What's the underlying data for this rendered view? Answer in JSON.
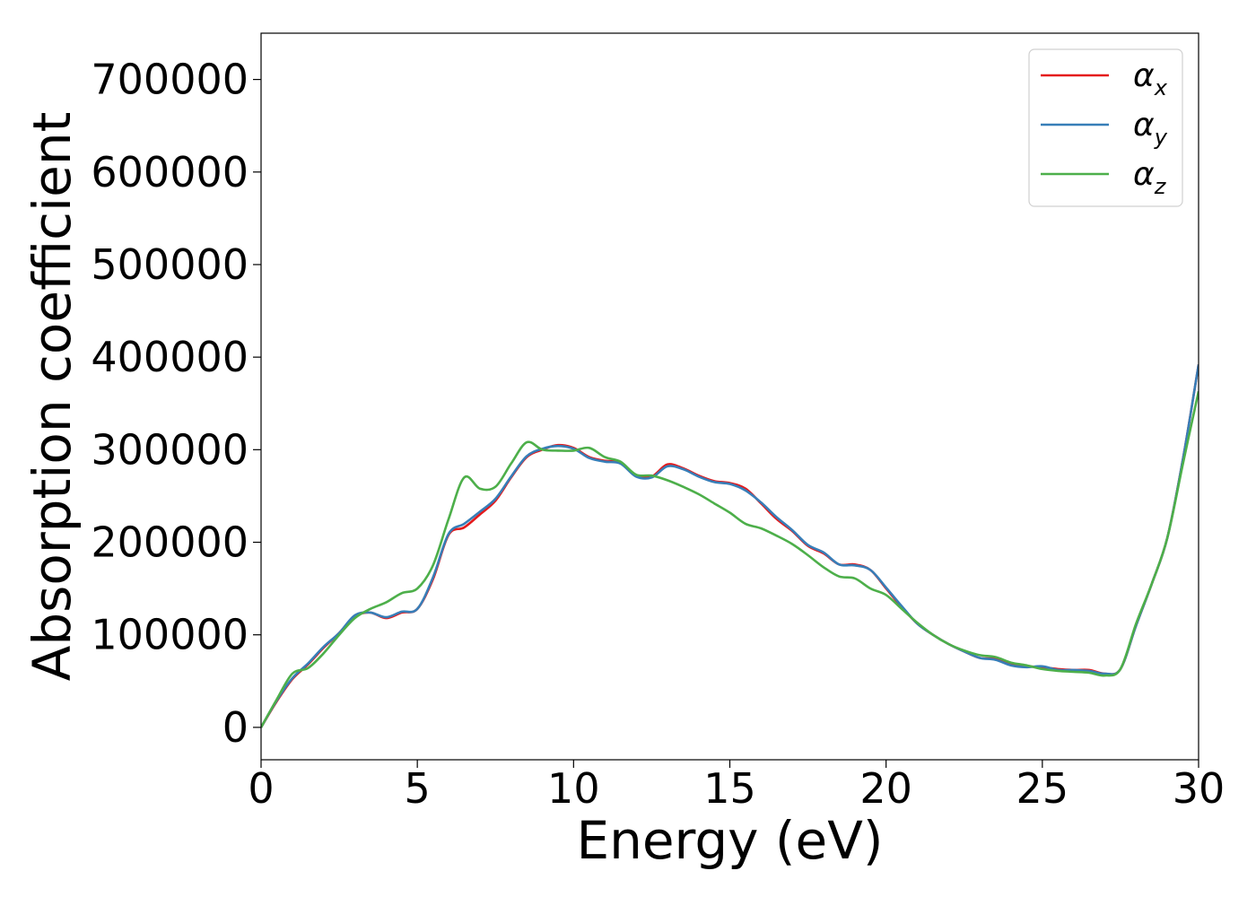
{
  "chart_data": {
    "type": "line",
    "xlabel": "Energy (eV)",
    "ylabel": "Absorption coefficient",
    "xlim": [
      0,
      30
    ],
    "ylim": [
      -35000,
      750000
    ],
    "xticks": [
      0,
      5,
      10,
      15,
      20,
      25,
      30
    ],
    "xtick_labels": [
      "0",
      "5",
      "10",
      "15",
      "20",
      "25",
      "30"
    ],
    "yticks": [
      0,
      100000,
      200000,
      300000,
      400000,
      500000,
      600000,
      700000
    ],
    "ytick_labels": [
      "0",
      "100000",
      "200000",
      "300000",
      "400000",
      "500000",
      "600000",
      "700000"
    ],
    "grid": false,
    "legend_position": "top-right",
    "series": [
      {
        "name": "α_x",
        "symbol": "α",
        "subscript": "x",
        "color": "#e41a1c",
        "x": [
          0,
          0.5,
          1,
          1.5,
          2,
          2.5,
          3,
          3.5,
          4,
          4.5,
          5,
          5.5,
          6,
          6.5,
          7,
          7.5,
          8,
          8.5,
          9,
          9.5,
          10,
          10.5,
          11,
          11.5,
          12,
          12.5,
          13,
          13.5,
          14,
          14.5,
          15,
          15.5,
          16,
          16.5,
          17,
          17.5,
          18,
          18.5,
          19,
          19.5,
          20,
          20.5,
          21,
          21.5,
          22,
          22.5,
          23,
          23.5,
          24,
          24.5,
          25,
          25.5,
          26,
          26.5,
          27,
          27.5,
          28,
          28.5,
          29,
          29.5,
          30
        ],
        "y": [
          0,
          28000,
          52000,
          68000,
          86000,
          102000,
          120000,
          124000,
          118000,
          124000,
          128000,
          160000,
          208000,
          216000,
          230000,
          245000,
          270000,
          292000,
          300000,
          305000,
          302000,
          292000,
          288000,
          286000,
          272000,
          271000,
          284000,
          280000,
          272000,
          266000,
          264000,
          258000,
          242000,
          225000,
          212000,
          196000,
          188000,
          176000,
          176000,
          170000,
          150000,
          130000,
          112000,
          100000,
          90000,
          82000,
          75000,
          74000,
          68000,
          66000,
          65000,
          63000,
          62000,
          62000,
          58000,
          63000,
          110000,
          155000,
          205000,
          290000,
          392000
        ]
      },
      {
        "name": "α_y",
        "symbol": "α",
        "subscript": "y",
        "color": "#377eb8",
        "x": [
          0,
          0.5,
          1,
          1.5,
          2,
          2.5,
          3,
          3.5,
          4,
          4.5,
          5,
          5.5,
          6,
          6.5,
          7,
          7.5,
          8,
          8.5,
          9,
          9.5,
          10,
          10.5,
          11,
          11.5,
          12,
          12.5,
          13,
          13.5,
          14,
          14.5,
          15,
          15.5,
          16,
          16.5,
          17,
          17.5,
          18,
          18.5,
          19,
          19.5,
          20,
          20.5,
          21,
          21.5,
          22,
          22.5,
          23,
          23.5,
          24,
          24.5,
          25,
          25.5,
          26,
          26.5,
          27,
          27.5,
          28,
          28.5,
          29,
          29.5,
          30
        ],
        "y": [
          0,
          29000,
          53000,
          69000,
          87000,
          102000,
          121000,
          124000,
          119000,
          125000,
          128000,
          162000,
          209000,
          220000,
          233000,
          247000,
          271000,
          293000,
          301000,
          304000,
          301000,
          291000,
          287000,
          285000,
          271000,
          270000,
          282000,
          279000,
          271000,
          265000,
          263000,
          256000,
          243000,
          227000,
          213000,
          197000,
          189000,
          176000,
          175000,
          170000,
          151000,
          131000,
          112000,
          100000,
          90000,
          82000,
          75000,
          73000,
          67000,
          65000,
          66000,
          62000,
          62000,
          61000,
          58000,
          63000,
          110000,
          155000,
          205000,
          290000,
          392000
        ]
      },
      {
        "name": "α_z",
        "symbol": "α",
        "subscript": "z",
        "color": "#4daf4a",
        "x": [
          0,
          0.5,
          1,
          1.5,
          2,
          2.5,
          3,
          3.5,
          4,
          4.5,
          5,
          5.5,
          6,
          6.5,
          7,
          7.5,
          8,
          8.5,
          9,
          9.5,
          10,
          10.5,
          11,
          11.5,
          12,
          12.5,
          13,
          13.5,
          14,
          14.5,
          15,
          15.5,
          16,
          16.5,
          17,
          17.5,
          18,
          18.5,
          19,
          19.5,
          20,
          20.5,
          21,
          21.5,
          22,
          22.5,
          23,
          23.5,
          24,
          24.5,
          25,
          25.5,
          26,
          26.5,
          27,
          27.5,
          28,
          28.5,
          29,
          29.5,
          30
        ],
        "y": [
          0,
          30000,
          58000,
          64000,
          80000,
          100000,
          118000,
          128000,
          135000,
          145000,
          150000,
          175000,
          225000,
          270000,
          258000,
          260000,
          285000,
          308000,
          300000,
          299000,
          299000,
          302000,
          292000,
          287000,
          273000,
          272000,
          267000,
          260000,
          252000,
          242000,
          232000,
          220000,
          215000,
          207000,
          198000,
          186000,
          173000,
          163000,
          161000,
          150000,
          143000,
          128000,
          113000,
          100000,
          90000,
          83000,
          78000,
          76000,
          70000,
          67000,
          63000,
          61000,
          60000,
          59000,
          56000,
          63000,
          112000,
          155000,
          205000,
          285000,
          363000
        ]
      }
    ]
  }
}
